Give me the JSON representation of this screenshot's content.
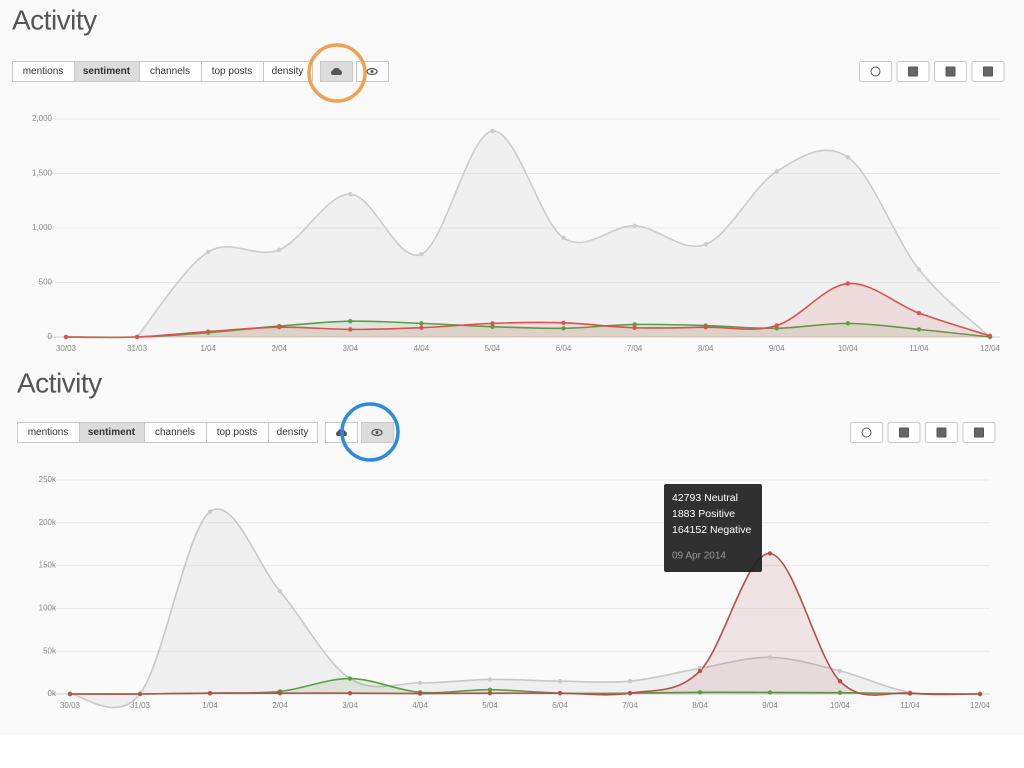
{
  "panels": [
    {
      "title": "Activity",
      "tabs": [
        "mentions",
        "sentiment",
        "channels",
        "top posts",
        "density"
      ]
    },
    {
      "title": "Activity",
      "tabs": [
        "mentions",
        "sentiment",
        "channels",
        "top posts",
        "density"
      ]
    }
  ],
  "chart_data": [
    {
      "type": "area",
      "categories": [
        "30/03",
        "31/03",
        "1/04",
        "2/04",
        "3/04",
        "4/04",
        "5/04",
        "6/04",
        "7/04",
        "8/04",
        "9/04",
        "10/04",
        "11/04",
        "12/04"
      ],
      "ylim": [
        0,
        2000
      ],
      "yticks": [
        0,
        500,
        {
          "value": 1000,
          "label": "1,000"
        },
        {
          "value": 1500,
          "label": "1,500"
        },
        {
          "value": 2000,
          "label": "2,000"
        }
      ],
      "grid": true,
      "series": [
        {
          "color": "#cccccc",
          "values": [
            null,
            0,
            780,
            800,
            1310,
            760,
            1890,
            910,
            1020,
            850,
            1520,
            1650,
            620,
            0
          ]
        },
        {
          "color": "#5a9e45",
          "values": [
            0,
            0,
            40,
            100,
            145,
            125,
            95,
            80,
            115,
            105,
            80,
            125,
            70,
            0
          ]
        },
        {
          "color": "#d9534f",
          "values": [
            0,
            0,
            50,
            90,
            70,
            85,
            125,
            130,
            85,
            90,
            105,
            490,
            220,
            10
          ]
        }
      ]
    },
    {
      "type": "area",
      "categories": [
        "30/03",
        "31/03",
        "1/04",
        "2/04",
        "3/04",
        "4/04",
        "5/04",
        "6/04",
        "7/04",
        "8/04",
        "9/04",
        "10/04",
        "11/04",
        "12/04"
      ],
      "ylim": [
        0,
        250000
      ],
      "yticks": [
        {
          "value": 0,
          "label": "0k"
        },
        {
          "value": 50000,
          "label": "50k"
        },
        {
          "value": 100000,
          "label": "100k"
        },
        {
          "value": 150000,
          "label": "150k"
        },
        {
          "value": 200000,
          "label": "200k"
        },
        {
          "value": 250000,
          "label": "250k"
        }
      ],
      "grid": true,
      "series": [
        {
          "color": "#c8c8c8",
          "values": [
            0,
            0,
            213000,
            120000,
            18000,
            13000,
            17000,
            15000,
            15000,
            30000,
            42793,
            27000,
            2000,
            0
          ]
        },
        {
          "color": "#5a9e45",
          "values": [
            0,
            0,
            1000,
            3000,
            18000,
            2000,
            5000,
            1000,
            1000,
            2000,
            1883,
            1500,
            500,
            0
          ]
        },
        {
          "color": "#b5504a",
          "values": [
            0,
            0,
            1000,
            1000,
            1000,
            500,
            1000,
            1000,
            1000,
            27000,
            164152,
            15000,
            1000,
            0
          ]
        }
      ],
      "tooltip": {
        "lines": [
          "42793 Neutral",
          "1883 Positive",
          "164152 Negative"
        ],
        "date": "09 Apr 2014"
      }
    }
  ]
}
